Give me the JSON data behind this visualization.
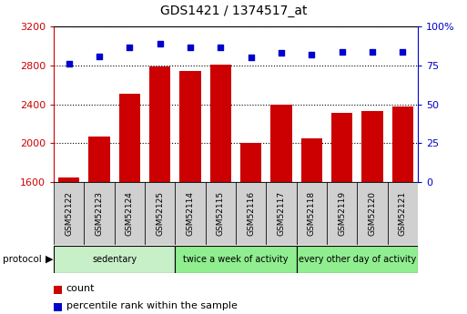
{
  "title": "GDS1421 / 1374517_at",
  "samples": [
    "GSM52122",
    "GSM52123",
    "GSM52124",
    "GSM52125",
    "GSM52114",
    "GSM52115",
    "GSM52116",
    "GSM52117",
    "GSM52118",
    "GSM52119",
    "GSM52120",
    "GSM52121"
  ],
  "counts": [
    1650,
    2070,
    2510,
    2790,
    2740,
    2810,
    2005,
    2400,
    2050,
    2315,
    2330,
    2375
  ],
  "percentiles": [
    76,
    81,
    87,
    89,
    87,
    87,
    80,
    83,
    82,
    84,
    84,
    84
  ],
  "ylim_left": [
    1600,
    3200
  ],
  "ylim_right": [
    0,
    100
  ],
  "yticks_left": [
    1600,
    2000,
    2400,
    2800,
    3200
  ],
  "yticks_right": [
    0,
    25,
    50,
    75,
    100
  ],
  "bar_color": "#cc0000",
  "dot_color": "#0000cc",
  "groups": [
    {
      "label": "sedentary",
      "start": 0,
      "end": 4,
      "color": "#c8f0c8"
    },
    {
      "label": "twice a week of activity",
      "start": 4,
      "end": 8,
      "color": "#90ee90"
    },
    {
      "label": "every other day of activity",
      "start": 8,
      "end": 12,
      "color": "#90ee90"
    }
  ],
  "protocol_label": "protocol",
  "legend_count_label": "count",
  "legend_percentile_label": "percentile rank within the sample",
  "tick_color_left": "#cc0000",
  "tick_color_right": "#0000cc",
  "tickbox_color": "#d0d0d0",
  "border_color": "#000000"
}
